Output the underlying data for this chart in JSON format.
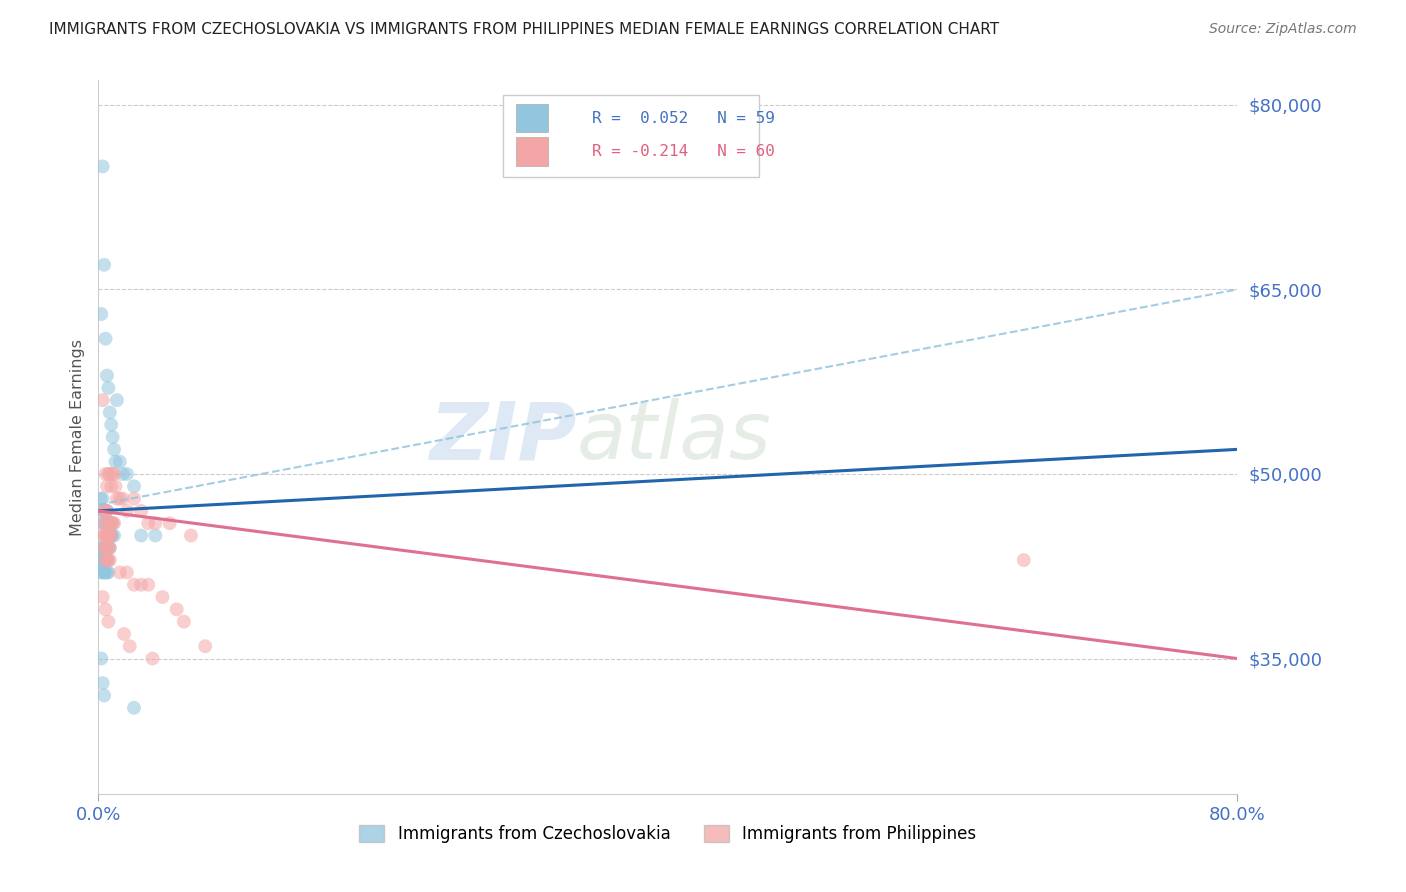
{
  "title": "IMMIGRANTS FROM CZECHOSLOVAKIA VS IMMIGRANTS FROM PHILIPPINES MEDIAN FEMALE EARNINGS CORRELATION CHART",
  "source": "Source: ZipAtlas.com",
  "ylabel": "Median Female Earnings",
  "y_ticks": [
    35000,
    50000,
    65000,
    80000
  ],
  "y_tick_labels": [
    "$35,000",
    "$50,000",
    "$65,000",
    "$80,000"
  ],
  "x_min": 0.0,
  "x_max": 80.0,
  "y_min": 24000,
  "y_max": 82000,
  "color_czech": "#92c5de",
  "color_phil": "#f4a6a6",
  "color_trend_czech": "#2166ac",
  "color_trend_phil": "#e07090",
  "color_dash": "#92c5de",
  "watermark_zip": "ZIP",
  "watermark_atlas": "atlas",
  "czech_x": [
    0.3,
    0.4,
    0.5,
    0.6,
    0.7,
    0.8,
    0.9,
    1.0,
    1.1,
    1.2,
    1.3,
    1.5,
    1.7,
    2.0,
    2.5,
    3.0,
    4.0,
    0.2,
    0.3,
    0.4,
    0.5,
    0.6,
    0.7,
    0.8,
    0.9,
    1.0,
    1.1,
    0.15,
    0.25,
    0.35,
    0.45,
    0.55,
    0.65,
    0.75,
    0.85,
    0.95,
    0.2,
    0.3,
    0.4,
    0.5,
    0.6,
    0.7,
    0.8,
    0.15,
    0.25,
    0.35,
    0.45,
    0.55,
    0.65,
    0.2,
    0.3,
    0.4,
    0.5,
    0.6,
    0.7,
    0.2,
    0.3,
    0.4,
    2.5
  ],
  "czech_y": [
    75000,
    67000,
    61000,
    58000,
    57000,
    55000,
    54000,
    53000,
    52000,
    51000,
    56000,
    51000,
    50000,
    50000,
    49000,
    45000,
    45000,
    63000,
    48000,
    47000,
    47000,
    47000,
    46000,
    46000,
    45000,
    46000,
    45000,
    48000,
    47000,
    46000,
    46000,
    46000,
    45000,
    45000,
    45000,
    45000,
    44000,
    44000,
    44000,
    44000,
    44000,
    44000,
    44000,
    43000,
    43000,
    43000,
    43000,
    43000,
    43000,
    42000,
    42000,
    42000,
    42000,
    42000,
    42000,
    35000,
    33000,
    32000,
    31000
  ],
  "phil_x": [
    0.3,
    0.5,
    0.6,
    0.7,
    0.8,
    0.9,
    1.0,
    1.1,
    1.2,
    1.3,
    1.5,
    1.7,
    2.0,
    2.5,
    3.0,
    3.5,
    4.0,
    5.0,
    6.5,
    0.3,
    0.4,
    0.5,
    0.6,
    0.7,
    0.8,
    0.9,
    1.0,
    1.1,
    0.3,
    0.4,
    0.5,
    0.6,
    0.7,
    0.8,
    0.9,
    0.4,
    0.5,
    0.6,
    0.7,
    0.8,
    0.5,
    0.6,
    0.7,
    0.8,
    1.5,
    2.0,
    2.5,
    3.0,
    3.5,
    4.5,
    5.5,
    6.0,
    7.5,
    0.3,
    0.5,
    0.7,
    1.8,
    2.2,
    3.8,
    65.0
  ],
  "phil_y": [
    56000,
    50000,
    49000,
    50000,
    50000,
    49000,
    50000,
    50000,
    49000,
    48000,
    48000,
    48000,
    47000,
    48000,
    47000,
    46000,
    46000,
    46000,
    45000,
    46000,
    47000,
    47000,
    47000,
    46000,
    46000,
    46000,
    46000,
    46000,
    45000,
    45000,
    45000,
    45000,
    45000,
    45000,
    45000,
    44000,
    44000,
    44000,
    44000,
    44000,
    43000,
    43000,
    43000,
    43000,
    42000,
    42000,
    41000,
    41000,
    41000,
    40000,
    39000,
    38000,
    36000,
    40000,
    39000,
    38000,
    37000,
    36000,
    35000,
    43000
  ]
}
